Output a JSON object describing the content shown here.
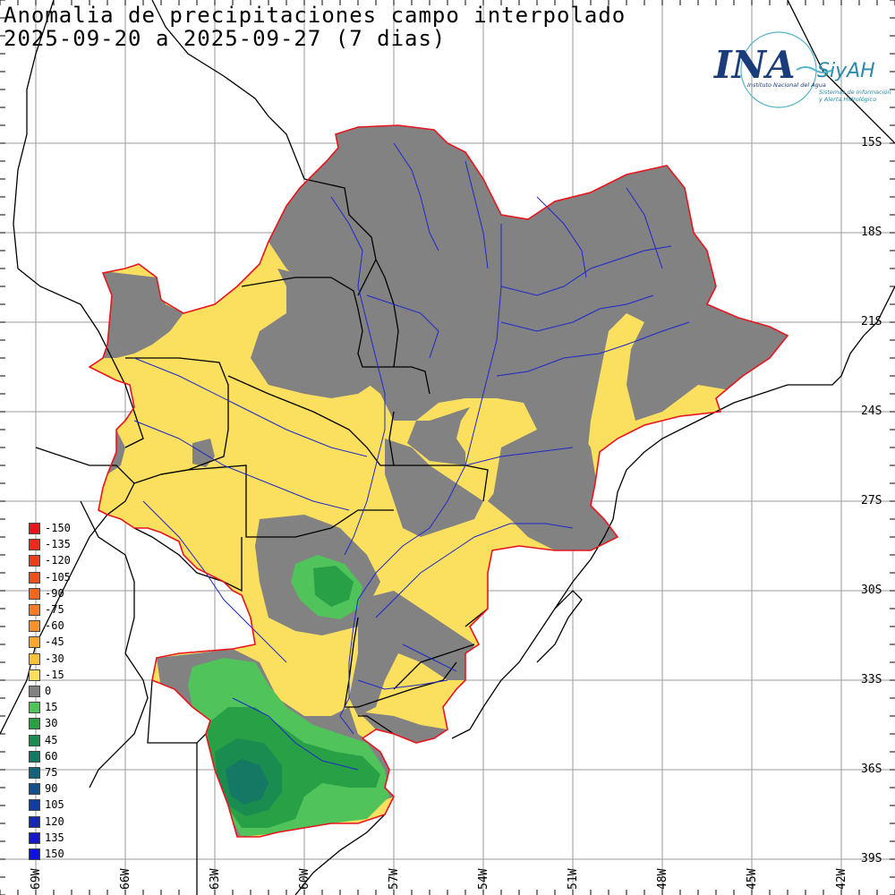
{
  "title": {
    "line1": "Anomalia de precipitaciones campo interpolado",
    "line2": "2025-09-20 a 2025-09-27 (7 dias)"
  },
  "logo": {
    "mark": "INA",
    "name": "SiyAH",
    "org": "Instituto Nacional del Agua",
    "system_line1": "Sistemas de Información",
    "system_line2": "y Alerta Hidrológico"
  },
  "latitude_labels": [
    "15S",
    "18S",
    "21S",
    "24S",
    "27S",
    "30S",
    "33S",
    "36S",
    "39S"
  ],
  "longitude_labels": [
    "69W",
    "66W",
    "63W",
    "60W",
    "57W",
    "54W",
    "51W",
    "48W",
    "45W",
    "42W"
  ],
  "legend": {
    "items": [
      {
        "label": "-150",
        "color": "#e8141e"
      },
      {
        "label": "-135",
        "color": "#ec2a1e"
      },
      {
        "label": "-120",
        "color": "#ee3c1e"
      },
      {
        "label": "-105",
        "color": "#f0501e"
      },
      {
        "label": "-90",
        "color": "#f2661e"
      },
      {
        "label": "-75",
        "color": "#f47c28"
      },
      {
        "label": "-60",
        "color": "#f6922e"
      },
      {
        "label": "-45",
        "color": "#f8a832"
      },
      {
        "label": "-30",
        "color": "#fac23c"
      },
      {
        "label": "-15",
        "color": "#fbdf5f"
      },
      {
        "label": "0",
        "color": "#828282"
      },
      {
        "label": "15",
        "color": "#50c35a"
      },
      {
        "label": "30",
        "color": "#28a046"
      },
      {
        "label": "45",
        "color": "#1a8c50"
      },
      {
        "label": "60",
        "color": "#147864"
      },
      {
        "label": "75",
        "color": "#146478"
      },
      {
        "label": "90",
        "color": "#14508c"
      },
      {
        "label": "105",
        "color": "#143ca0"
      },
      {
        "label": "120",
        "color": "#1428b4"
      },
      {
        "label": "135",
        "color": "#1418c8"
      },
      {
        "label": "150",
        "color": "#1010e6"
      }
    ]
  },
  "colors": {
    "grid": "#9a9a9a",
    "border": "#000000",
    "rivers": "#1e28c8",
    "basin_outline": "#e8141e",
    "neutral": "#828282",
    "dry": "#fbdf5f",
    "wet15": "#50c35a",
    "wet30": "#28a046",
    "wet45": "#1a8c50",
    "wet60": "#147864"
  }
}
